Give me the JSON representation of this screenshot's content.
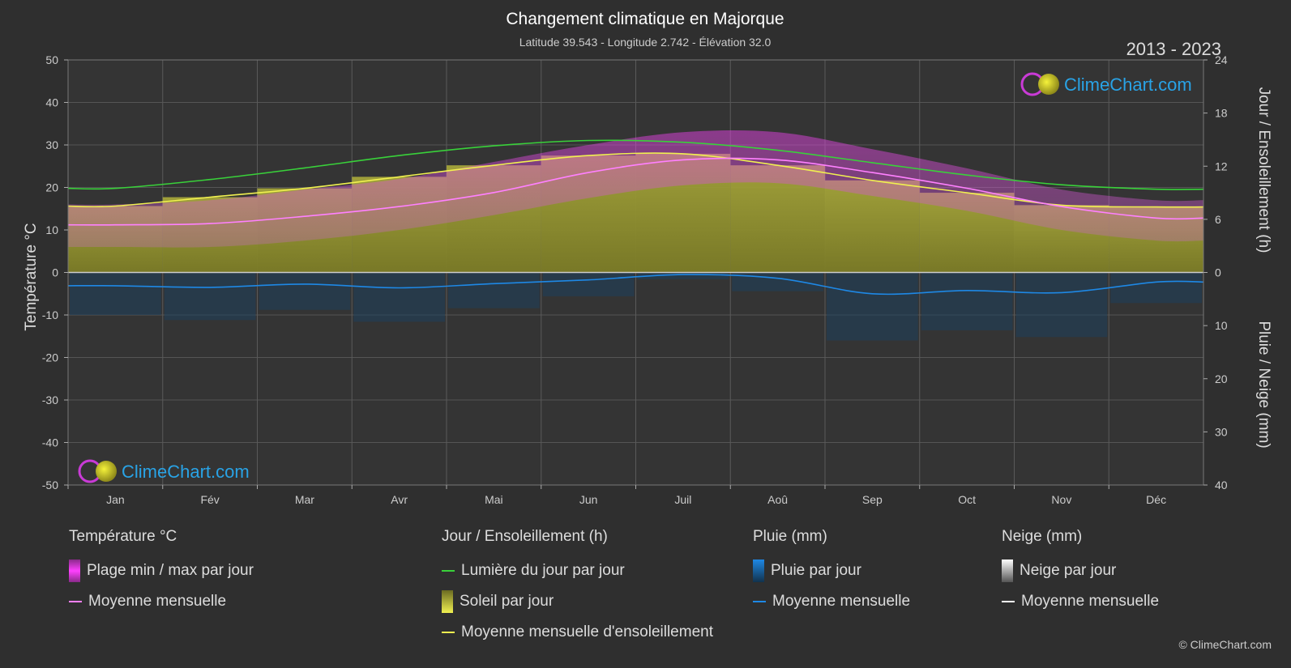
{
  "title": "Changement climatique en Majorque",
  "subtitle": "Latitude 39.543 - Longitude 2.742 - Élévation 32.0",
  "year_range": "2013 - 2023",
  "brand": "ClimeChart.com",
  "copyright": "© ClimeChart.com",
  "left_axis": {
    "title": "Température °C",
    "ticks": [
      "50",
      "40",
      "30",
      "20",
      "10",
      "0",
      "-10",
      "-20",
      "-30",
      "-40",
      "-50"
    ]
  },
  "right_axis_top": {
    "title": "Jour / Ensoleillement (h)",
    "ticks": [
      "24",
      "18",
      "12",
      "6",
      "0"
    ]
  },
  "right_axis_bottom": {
    "title": "Pluie / Neige (mm)",
    "ticks": [
      "10",
      "20",
      "30",
      "40"
    ]
  },
  "legend": {
    "temp": {
      "title": "Température °C",
      "range": "Plage min / max par jour",
      "mean": "Moyenne mensuelle"
    },
    "sun": {
      "title": "Jour / Ensoleillement (h)",
      "daylight": "Lumière du jour par jour",
      "sunshine": "Soleil par jour",
      "mean": "Moyenne mensuelle d'ensoleillement"
    },
    "rain": {
      "title": "Pluie (mm)",
      "daily": "Pluie par jour",
      "mean": "Moyenne mensuelle"
    },
    "snow": {
      "title": "Neige (mm)",
      "daily": "Neige par jour",
      "mean": "Moyenne mensuelle"
    }
  },
  "colors": {
    "temp_range": "#d63fd6",
    "temp_mean": "#ff80ff",
    "daylight": "#39d13a",
    "sunshine_fill": "#8f8f2e",
    "sunshine_mean": "#f0f050",
    "rain": "#1e88e5",
    "snow": "#ffffff",
    "brand": "#29a3e6"
  },
  "chart_data": {
    "type": "area",
    "months": [
      "Jan",
      "Fév",
      "Mar",
      "Avr",
      "Mai",
      "Jun",
      "Juil",
      "Aoû",
      "Sep",
      "Oct",
      "Nov",
      "Déc"
    ],
    "temperature_ylim": [
      -50,
      50
    ],
    "sun_ylim": [
      0,
      24
    ],
    "precip_ylim": [
      0,
      40
    ],
    "series": [
      {
        "name": "Lumière du jour par jour",
        "axis": "sun_h",
        "values": [
          9.5,
          10.5,
          11.8,
          13.2,
          14.3,
          14.9,
          14.7,
          13.8,
          12.4,
          11.0,
          9.9,
          9.4
        ]
      },
      {
        "name": "Soleil par jour",
        "axis": "sun_h",
        "values": [
          7.5,
          8.5,
          9.5,
          10.8,
          12.1,
          13.2,
          13.4,
          12.1,
          10.4,
          9.0,
          7.6,
          7.4
        ]
      },
      {
        "name": "Moyenne mensuelle d'ensoleillement",
        "axis": "sun_h",
        "values": [
          7.5,
          8.5,
          9.5,
          10.8,
          12.1,
          13.2,
          13.4,
          12.1,
          10.4,
          9.0,
          7.6,
          7.4
        ]
      },
      {
        "name": "Plage min / max par jour (max)",
        "axis": "temp_c",
        "values": [
          16,
          17,
          19.5,
          22,
          26,
          30,
          33,
          33,
          29,
          24.5,
          19.5,
          17
        ]
      },
      {
        "name": "Plage min / max par jour (min)",
        "axis": "temp_c",
        "values": [
          6,
          6,
          7.5,
          10,
          13.5,
          17.5,
          20.5,
          21,
          18,
          14.5,
          10,
          7.5
        ]
      },
      {
        "name": "Moyenne mensuelle",
        "axis": "temp_c",
        "values": [
          11.2,
          11.5,
          13.2,
          15.5,
          18.8,
          23.5,
          26.5,
          26.5,
          23.5,
          19.8,
          15.5,
          12.8
        ]
      },
      {
        "name": "Moyenne mensuelle (pluie)",
        "axis": "precip_mm",
        "values": [
          2.5,
          2.8,
          2.2,
          2.9,
          2.1,
          1.4,
          0.4,
          1.1,
          4.0,
          3.4,
          3.8,
          1.8
        ]
      }
    ]
  }
}
